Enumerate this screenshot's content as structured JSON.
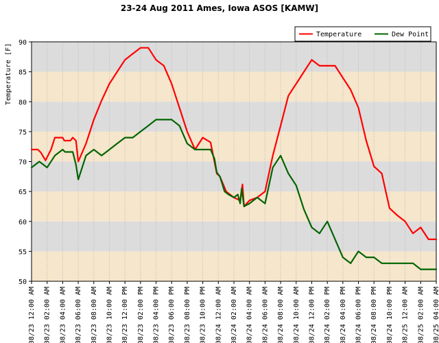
{
  "chart_data": {
    "type": "line",
    "title": "23-24 Aug 2011 Ames, Iowa ASOS [KAMW]",
    "ylabel": "Temperature [F]",
    "xlabel": "",
    "ylim": [
      50,
      90
    ],
    "yticks": [
      50,
      55,
      60,
      65,
      70,
      75,
      80,
      85,
      90
    ],
    "xlim": [
      0,
      50
    ],
    "x_unit": "hours since 08/23 12:00 AM",
    "grid": true,
    "band_colors": [
      "#f5e6cc",
      "#dcdcdc"
    ],
    "legend_position": "top-right",
    "xticks": [
      {
        "x": 0,
        "label": "08/23 12:00 AM"
      },
      {
        "x": 2,
        "label": "08/23 02:00 AM"
      },
      {
        "x": 4,
        "label": "08/23 04:00 AM"
      },
      {
        "x": 6,
        "label": "08/23 06:00 AM"
      },
      {
        "x": 8,
        "label": "08/23 08:00 AM"
      },
      {
        "x": 10,
        "label": "08/23 10:00 AM"
      },
      {
        "x": 12,
        "label": "08/23 12:00 PM"
      },
      {
        "x": 14,
        "label": "08/23 02:00 PM"
      },
      {
        "x": 16,
        "label": "08/23 04:00 PM"
      },
      {
        "x": 18,
        "label": "08/23 06:00 PM"
      },
      {
        "x": 20,
        "label": "08/23 08:00 PM"
      },
      {
        "x": 22,
        "label": "08/23 10:00 PM"
      },
      {
        "x": 24,
        "label": "08/24 12:00 AM"
      },
      {
        "x": 26,
        "label": "08/24 02:00 AM"
      },
      {
        "x": 28,
        "label": "08/24 04:00 AM"
      },
      {
        "x": 30,
        "label": "08/24 06:00 AM"
      },
      {
        "x": 32,
        "label": "08/24 08:00 AM"
      },
      {
        "x": 34,
        "label": "08/24 10:00 AM"
      },
      {
        "x": 36,
        "label": "08/24 12:00 PM"
      },
      {
        "x": 38,
        "label": "08/24 02:00 PM"
      },
      {
        "x": 40,
        "label": "08/24 04:00 PM"
      },
      {
        "x": 42,
        "label": "08/24 06:00 PM"
      },
      {
        "x": 44,
        "label": "08/24 08:00 PM"
      },
      {
        "x": 46,
        "label": "08/24 10:00 PM"
      },
      {
        "x": 48,
        "label": "08/25 12:00 AM"
      },
      {
        "x": 50,
        "label": "08/25 02:00 AM"
      },
      {
        "x": 52,
        "label": "08/25 04:00 AM"
      }
    ],
    "series": [
      {
        "name": "Temperature",
        "color": "#ff0000",
        "points": [
          [
            0,
            72
          ],
          [
            0.8,
            72
          ],
          [
            1.2,
            71.5
          ],
          [
            1.8,
            70.2
          ],
          [
            2.5,
            72
          ],
          [
            3,
            74
          ],
          [
            4,
            74
          ],
          [
            4.2,
            73.5
          ],
          [
            5,
            73.5
          ],
          [
            5.3,
            74
          ],
          [
            5.7,
            73.5
          ],
          [
            6,
            70
          ],
          [
            7,
            73
          ],
          [
            8,
            77
          ],
          [
            9,
            80.2
          ],
          [
            10,
            83
          ],
          [
            11,
            85
          ],
          [
            12,
            87
          ],
          [
            13,
            88
          ],
          [
            14,
            89
          ],
          [
            15,
            89
          ],
          [
            16,
            87
          ],
          [
            17,
            86
          ],
          [
            18,
            83
          ],
          [
            19,
            79
          ],
          [
            20,
            75
          ],
          [
            21,
            72
          ],
          [
            22,
            74
          ],
          [
            23,
            73.2
          ],
          [
            23.5,
            70
          ],
          [
            23.8,
            68
          ],
          [
            24.2,
            67.5
          ],
          [
            25,
            65
          ],
          [
            26,
            64
          ],
          [
            26.8,
            63.5
          ],
          [
            27.1,
            66.2
          ],
          [
            27.3,
            62.5
          ],
          [
            28,
            63.5
          ],
          [
            29,
            64
          ],
          [
            30,
            65
          ],
          [
            31,
            71
          ],
          [
            32,
            76
          ],
          [
            33,
            81
          ],
          [
            34,
            83
          ],
          [
            35,
            85
          ],
          [
            36,
            87
          ],
          [
            37,
            86
          ],
          [
            38,
            86
          ],
          [
            39,
            86
          ],
          [
            40,
            84
          ],
          [
            41,
            82
          ],
          [
            42,
            79
          ],
          [
            43,
            73.5
          ],
          [
            44,
            69.2
          ],
          [
            45,
            68
          ],
          [
            46,
            62.2
          ],
          [
            47,
            61
          ],
          [
            48,
            60
          ],
          [
            49,
            58
          ],
          [
            50,
            59
          ],
          [
            51,
            57
          ],
          [
            52,
            57
          ]
        ]
      },
      {
        "name": "Dew Point",
        "color": "#006400",
        "points": [
          [
            0,
            69
          ],
          [
            1,
            70
          ],
          [
            2,
            69
          ],
          [
            3,
            71
          ],
          [
            4,
            72
          ],
          [
            4.3,
            71.6
          ],
          [
            5,
            71.6
          ],
          [
            5.3,
            71.6
          ],
          [
            5.7,
            69.5
          ],
          [
            6,
            67
          ],
          [
            7,
            71
          ],
          [
            8,
            72
          ],
          [
            9,
            71
          ],
          [
            10,
            72
          ],
          [
            11,
            73
          ],
          [
            12,
            74
          ],
          [
            13,
            74
          ],
          [
            14,
            75
          ],
          [
            15,
            76
          ],
          [
            16,
            77
          ],
          [
            17,
            77
          ],
          [
            18,
            77
          ],
          [
            19,
            76
          ],
          [
            20,
            73
          ],
          [
            21,
            72
          ],
          [
            22,
            72
          ],
          [
            23,
            72
          ],
          [
            23.5,
            70.5
          ],
          [
            23.8,
            68.2
          ],
          [
            24.2,
            67.5
          ],
          [
            24.8,
            65
          ],
          [
            25.3,
            64.5
          ],
          [
            26,
            64
          ],
          [
            26.5,
            64.5
          ],
          [
            26.8,
            63
          ],
          [
            27,
            65.5
          ],
          [
            27.3,
            62.5
          ],
          [
            28,
            63
          ],
          [
            29,
            64
          ],
          [
            30,
            63
          ],
          [
            31,
            69
          ],
          [
            32,
            71
          ],
          [
            33,
            68
          ],
          [
            34,
            66
          ],
          [
            35,
            62
          ],
          [
            36,
            59
          ],
          [
            37,
            58
          ],
          [
            38,
            60
          ],
          [
            39,
            57
          ],
          [
            40,
            54
          ],
          [
            41,
            53
          ],
          [
            42,
            55
          ],
          [
            43,
            54
          ],
          [
            44,
            54
          ],
          [
            45,
            53
          ],
          [
            46,
            53
          ],
          [
            47,
            53
          ],
          [
            48,
            53
          ],
          [
            49,
            53
          ],
          [
            50,
            52
          ],
          [
            51,
            52
          ],
          [
            52,
            52
          ]
        ]
      }
    ]
  }
}
